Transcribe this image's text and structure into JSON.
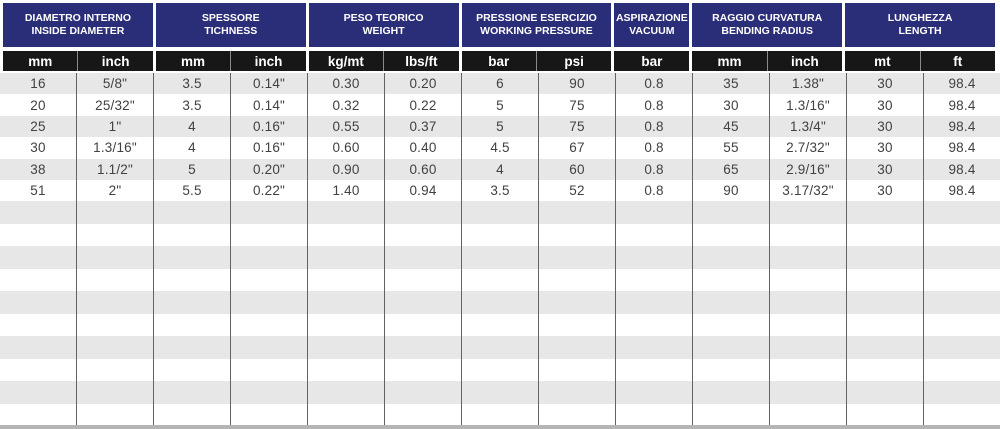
{
  "table": {
    "column_groups": [
      {
        "it": "DIAMETRO INTERNO",
        "en": "INSIDE DIAMETER",
        "cols": 2
      },
      {
        "it": "SPESSORE",
        "en": "TICHNESS",
        "cols": 2
      },
      {
        "it": "PESO TEORICO",
        "en": "WEIGHT",
        "cols": 2
      },
      {
        "it": "PRESSIONE ESERCIZIO",
        "en": "WORKING PRESSURE",
        "cols": 2
      },
      {
        "it": "ASPIRAZIONE",
        "en": "VACUUM",
        "cols": 1
      },
      {
        "it": "RAGGIO CURVATURA",
        "en": "BENDING RADIUS",
        "cols": 2
      },
      {
        "it": "LUNGHEZZA",
        "en": "LENGTH",
        "cols": 2
      }
    ],
    "units": [
      "mm",
      "inch",
      "mm",
      "inch",
      "kg/mt",
      "lbs/ft",
      "bar",
      "psi",
      "bar",
      "mm",
      "inch",
      "mt",
      "ft"
    ],
    "rows": [
      [
        "16",
        "5/8\"",
        "3.5",
        "0.14\"",
        "0.30",
        "0.20",
        "6",
        "90",
        "0.8",
        "35",
        "1.38\"",
        "30",
        "98.4"
      ],
      [
        "20",
        "25/32\"",
        "3.5",
        "0.14\"",
        "0.32",
        "0.22",
        "5",
        "75",
        "0.8",
        "30",
        "1.3/16\"",
        "30",
        "98.4"
      ],
      [
        "25",
        "1\"",
        "4",
        "0.16\"",
        "0.55",
        "0.37",
        "5",
        "75",
        "0.8",
        "45",
        "1.3/4\"",
        "30",
        "98.4"
      ],
      [
        "30",
        "1.3/16\"",
        "4",
        "0.16\"",
        "0.60",
        "0.40",
        "4.5",
        "67",
        "0.8",
        "55",
        "2.7/32\"",
        "30",
        "98.4"
      ],
      [
        "38",
        "1.1/2\"",
        "5",
        "0.20\"",
        "0.90",
        "0.60",
        "4",
        "60",
        "0.8",
        "65",
        "2.9/16\"",
        "30",
        "98.4"
      ],
      [
        "51",
        "2\"",
        "5.5",
        "0.22\"",
        "1.40",
        "0.94",
        "3.5",
        "52",
        "0.8",
        "90",
        "3.17/32\"",
        "30",
        "98.4"
      ]
    ],
    "empty_row_count": 10,
    "colors": {
      "header_navy": "#2a2d78",
      "units_black": "#171717",
      "stripe_gray": "#e7e7e7",
      "border_gray": "#636363",
      "bottom_bar": "#b5b5b5",
      "data_text": "#414141"
    }
  }
}
